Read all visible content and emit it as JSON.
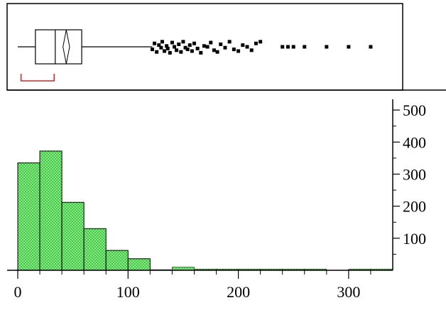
{
  "chart_data": [
    {
      "type": "box",
      "orientation": "horizontal",
      "whisker_low": 0,
      "q1": 16,
      "median": 34,
      "q3": 58,
      "whisker_high": 122,
      "mean": 44,
      "mean_ci": [
        41,
        47
      ],
      "shortest_half": [
        3,
        33
      ],
      "outliers": [
        122,
        124,
        126,
        128,
        130,
        131,
        133,
        135,
        136,
        138,
        140,
        142,
        144,
        146,
        148,
        150,
        152,
        154,
        156,
        158,
        160,
        163,
        166,
        169,
        172,
        175,
        178,
        181,
        184,
        188,
        192,
        196,
        200,
        204,
        208,
        212,
        216,
        220,
        240,
        245,
        250,
        260,
        280,
        300,
        320
      ],
      "outlier_jitter": [
        0.3,
        -0.4,
        0.6,
        -0.2,
        0.1,
        -0.6,
        0.5,
        -0.1,
        0.2,
        0.7,
        -0.5,
        0.0,
        0.4,
        -0.3,
        0.6,
        -0.6,
        0.1,
        0.3,
        -0.2,
        0.5,
        -0.4,
        0.2,
        0.7,
        -0.1,
        0.0,
        -0.5,
        0.4,
        0.6,
        -0.3,
        0.1,
        -0.6,
        0.3,
        0.5,
        -0.2,
        0.0,
        0.4,
        -0.4,
        -0.6,
        0.0,
        0.0,
        0.0,
        0.0,
        0.0,
        0.0,
        0.0
      ]
    },
    {
      "type": "histogram",
      "bin_width": 20,
      "bins": [
        {
          "start": 0,
          "count": 335
        },
        {
          "start": 20,
          "count": 372
        },
        {
          "start": 40,
          "count": 212
        },
        {
          "start": 60,
          "count": 130
        },
        {
          "start": 80,
          "count": 62
        },
        {
          "start": 100,
          "count": 36
        },
        {
          "start": 120,
          "count": 2
        },
        {
          "start": 140,
          "count": 10
        },
        {
          "start": 160,
          "count": 4
        },
        {
          "start": 180,
          "count": 4
        },
        {
          "start": 200,
          "count": 4
        },
        {
          "start": 220,
          "count": 4
        },
        {
          "start": 240,
          "count": 4
        },
        {
          "start": 260,
          "count": 4
        },
        {
          "start": 280,
          "count": 0
        },
        {
          "start": 300,
          "count": 4
        },
        {
          "start": 320,
          "count": 4
        }
      ],
      "xlim": [
        0,
        340
      ],
      "ylim": [
        0,
        560
      ],
      "x_ticks": [
        0,
        100,
        200,
        300
      ],
      "x_tick_labels": [
        "0",
        "100",
        "200",
        "300"
      ],
      "y_ticks": [
        100,
        200,
        300,
        400,
        500
      ],
      "y_tick_labels": [
        "100",
        "200",
        "300",
        "400",
        "500"
      ],
      "y_axis_side": "right",
      "bar_color": "#2dc82d",
      "bar_pattern": "crosshatch"
    }
  ]
}
